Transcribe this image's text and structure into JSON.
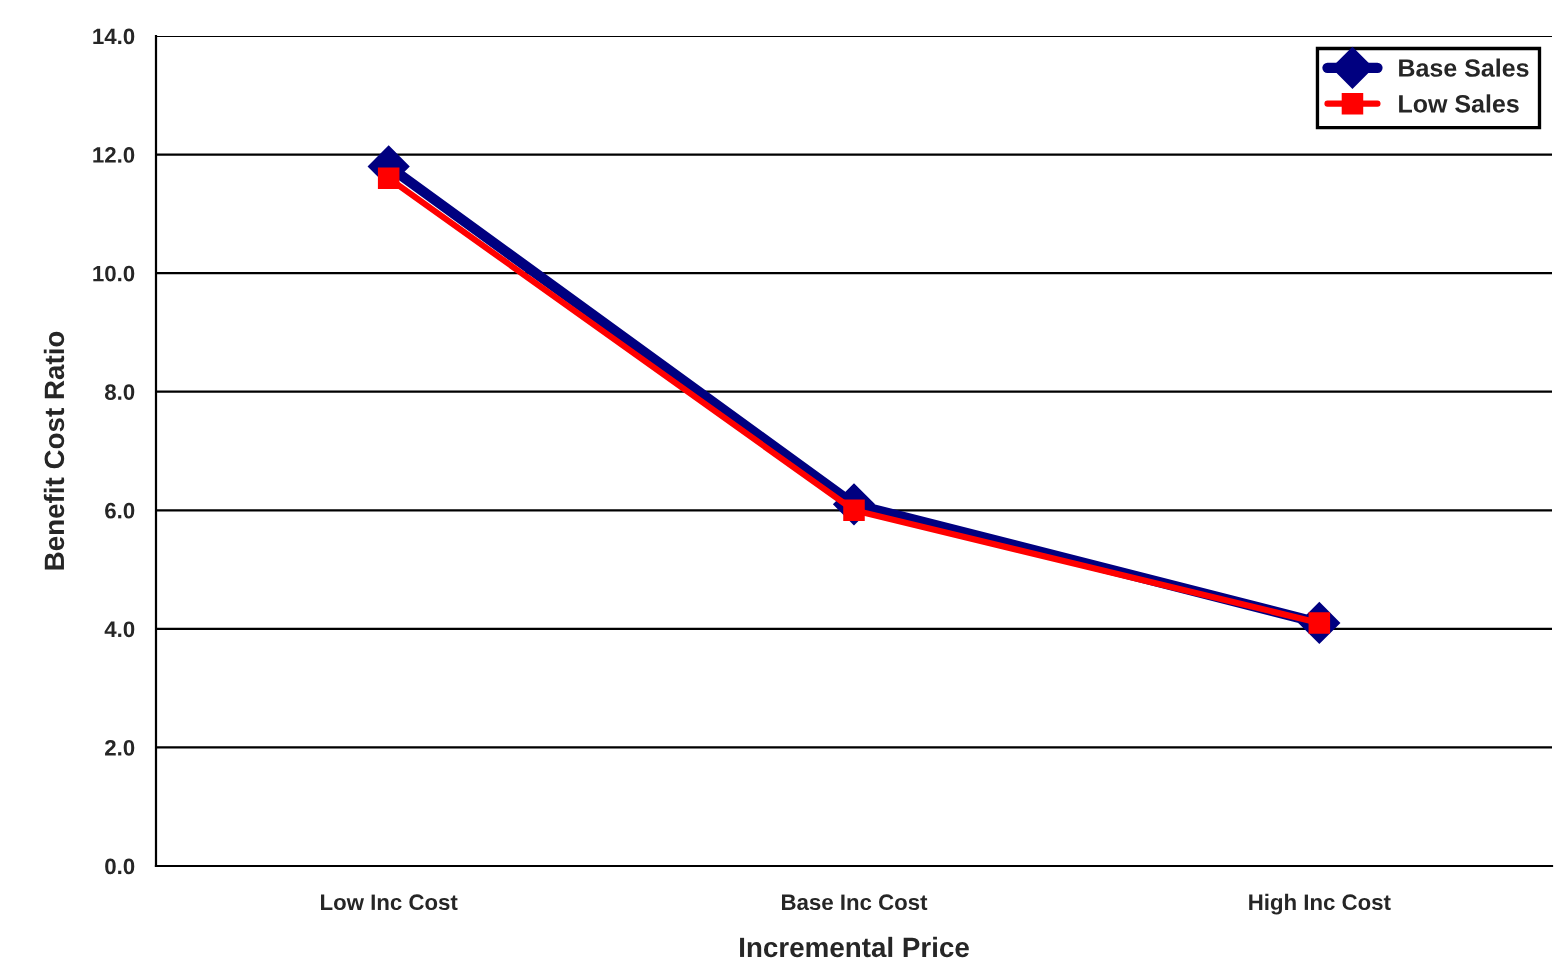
{
  "chart_data": {
    "type": "line",
    "xlabel": "Incremental Price",
    "ylabel": "Benefit Cost Ratio",
    "categories": [
      "Low Inc Cost",
      "Base Inc Cost",
      "High Inc Cost"
    ],
    "series": [
      {
        "name": "Base Sales",
        "color": "#000080",
        "marker": "diamond",
        "values": [
          11.8,
          6.1,
          4.1
        ]
      },
      {
        "name": "Low Sales",
        "color": "#ff0000",
        "marker": "square",
        "values": [
          11.6,
          6.0,
          4.1
        ]
      }
    ],
    "ylim": [
      0,
      14
    ],
    "yticks": [
      {
        "value": 0,
        "label": "0.0"
      },
      {
        "value": 2,
        "label": "2.0"
      },
      {
        "value": 4,
        "label": "4.0"
      },
      {
        "value": 6,
        "label": "6.0"
      },
      {
        "value": 8,
        "label": "8.0"
      },
      {
        "value": 10,
        "label": "10.0"
      },
      {
        "value": 12,
        "label": "12.0"
      },
      {
        "value": 14,
        "label": "14.0"
      }
    ],
    "grid": "y",
    "legend": "top right",
    "line_style": "solid"
  }
}
